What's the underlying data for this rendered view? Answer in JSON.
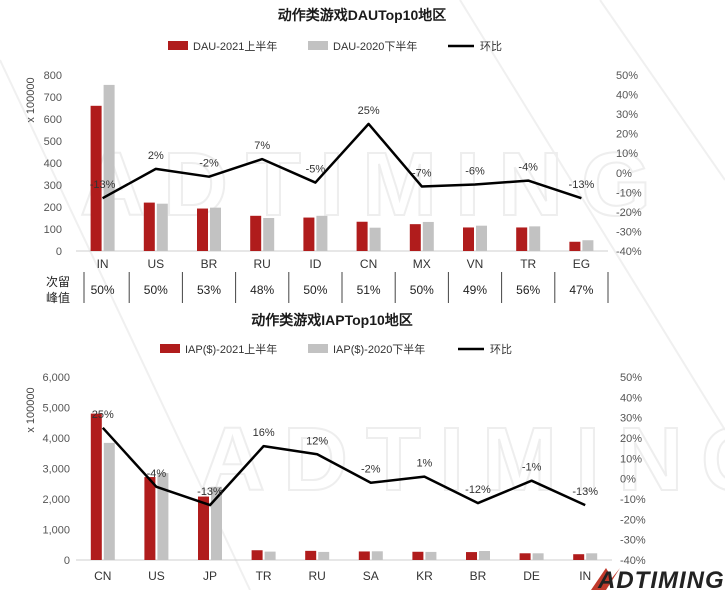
{
  "colors": {
    "series2021": "#b01c1c",
    "series2020": "#c2c2c2",
    "line": "#000000",
    "grid": "#e6e6e6"
  },
  "watermark": "ADTIMING",
  "logo": {
    "text": "ADTIMING"
  },
  "retention": {
    "header_line1": "次留",
    "header_line2": "峰值",
    "values": [
      "50%",
      "50%",
      "53%",
      "48%",
      "50%",
      "51%",
      "50%",
      "49%",
      "56%",
      "47%"
    ]
  },
  "chart_data": [
    {
      "type": "bar",
      "title": "动作类游戏DAUTop10地区",
      "ylabel": "x 100000",
      "ylim": [
        0,
        800
      ],
      "yticks": [
        "0",
        "100",
        "200",
        "300",
        "400",
        "500",
        "600",
        "700",
        "800"
      ],
      "y2lim": [
        -40,
        50
      ],
      "y2ticks": [
        "-40%",
        "-30%",
        "-20%",
        "-10%",
        "0%",
        "10%",
        "20%",
        "30%",
        "40%",
        "50%"
      ],
      "categories": [
        "IN",
        "US",
        "BR",
        "RU",
        "ID",
        "CN",
        "MX",
        "VN",
        "TR",
        "EG"
      ],
      "series": [
        {
          "name": "DAU-2021上半年",
          "axis": "left",
          "values": [
            660,
            220,
            193,
            160,
            152,
            133,
            122,
            107,
            107,
            42
          ]
        },
        {
          "name": "DAU-2020下半年",
          "axis": "left",
          "values": [
            755,
            215,
            197,
            150,
            160,
            106,
            132,
            115,
            112,
            49
          ]
        },
        {
          "name": "环比",
          "axis": "right",
          "type": "line",
          "values": [
            -13,
            2,
            -2,
            7,
            -5,
            25,
            -7,
            -6,
            -4,
            -13
          ]
        }
      ],
      "data_labels": [
        "-13%",
        "2%",
        "-2%",
        "7%",
        "-5%",
        "25%",
        "-7%",
        "-6%",
        "-4%",
        "-13%"
      ]
    },
    {
      "type": "bar",
      "title": "动作类游戏IAPTop10地区",
      "ylabel": "x 100000",
      "ylim": [
        0,
        6000
      ],
      "yticks": [
        "0",
        "1,000",
        "2,000",
        "3,000",
        "4,000",
        "5,000",
        "6,000"
      ],
      "y2lim": [
        -40,
        50
      ],
      "y2ticks": [
        "-40%",
        "-30%",
        "-20%",
        "-10%",
        "0%",
        "10%",
        "20%",
        "30%",
        "40%",
        "50%"
      ],
      "categories": [
        "CN",
        "US",
        "JP",
        "TR",
        "RU",
        "SA",
        "KR",
        "BR",
        "DE",
        "IN"
      ],
      "series": [
        {
          "name": "IAP($)-2021上半年",
          "axis": "left",
          "values": [
            4800,
            2720,
            2080,
            320,
            300,
            280,
            270,
            260,
            220,
            190
          ]
        },
        {
          "name": "IAP($)-2020下半年",
          "axis": "left",
          "values": [
            3840,
            2850,
            2400,
            275,
            265,
            285,
            265,
            295,
            220,
            220
          ]
        },
        {
          "name": "环比",
          "axis": "right",
          "type": "line",
          "values": [
            25,
            -4,
            -13,
            16,
            12,
            -2,
            1,
            -12,
            -1,
            -13
          ]
        }
      ],
      "data_labels": [
        "25%",
        "-4%",
        "-13%",
        "16%",
        "12%",
        "-2%",
        "1%",
        "-12%",
        "-1%",
        "-13%"
      ]
    }
  ]
}
